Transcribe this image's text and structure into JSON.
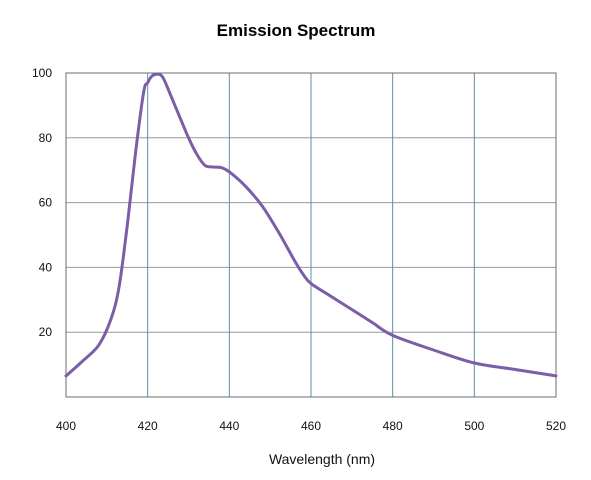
{
  "chart_data": {
    "type": "line",
    "title": "Emission Spectrum",
    "xlabel": "Wavelength (nm)",
    "ylabel": "",
    "xlim": [
      400,
      520
    ],
    "ylim": [
      0,
      100
    ],
    "x_ticks": [
      "400",
      "420",
      "440",
      "460",
      "480",
      "500",
      "520"
    ],
    "y_ticks": [
      "20",
      "40",
      "60",
      "80",
      "100"
    ],
    "grid": true,
    "line_color": "#7b5ea7",
    "horizontal_grid_color": "#9a9a9a",
    "vertical_grid_color": "#5c8fa6",
    "series": [
      {
        "x": [
          400,
          404,
          408,
          411,
          413,
          415,
          417,
          419,
          420,
          421,
          422,
          423,
          424,
          426,
          428,
          430,
          432,
          434,
          436,
          438,
          440,
          444,
          448,
          452,
          456,
          458,
          460,
          465,
          470,
          475,
          480,
          490,
          500,
          510,
          520
        ],
        "values": [
          6.5,
          11,
          16,
          24,
          34,
          53,
          75,
          94,
          97,
          99,
          99.6,
          99.5,
          98,
          92,
          86,
          80,
          75,
          71.5,
          71,
          70.8,
          69.5,
          65,
          59,
          51,
          42,
          38,
          35,
          31,
          27,
          23,
          19,
          14.5,
          10.5,
          8.5,
          6.5
        ]
      }
    ]
  }
}
